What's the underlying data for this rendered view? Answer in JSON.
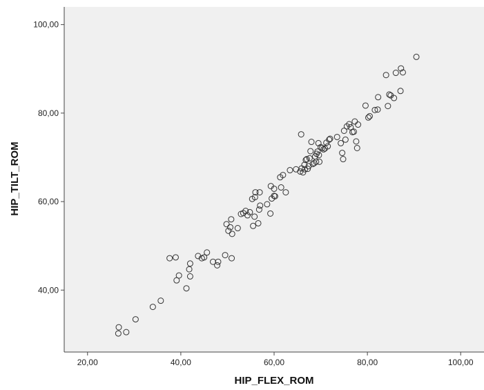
{
  "chart_data": {
    "type": "scatter",
    "title": "",
    "xlabel": "HIP_FLEX_ROM",
    "ylabel": "HIP_TILT_ROM",
    "xlim": [
      15,
      105
    ],
    "ylim": [
      26,
      104
    ],
    "xticks": [
      20,
      40,
      60,
      80,
      100
    ],
    "yticks": [
      40,
      60,
      80,
      100
    ],
    "xtick_labels": [
      "20,00",
      "40,00",
      "60,00",
      "80,00",
      "100,00"
    ],
    "ytick_labels": [
      "40,00",
      "60,00",
      "80,00",
      "100,00"
    ],
    "grid": false,
    "legend": "none",
    "background_color": "#f0f0f0",
    "marker": "open-circle",
    "series": [
      {
        "points": [
          [
            26.7,
            31.6
          ],
          [
            26.6,
            30.2
          ],
          [
            28.3,
            30.5
          ],
          [
            30.3,
            33.4
          ],
          [
            34.0,
            36.2
          ],
          [
            35.7,
            37.6
          ],
          [
            37.6,
            47.2
          ],
          [
            38.9,
            47.4
          ],
          [
            39.1,
            42.2
          ],
          [
            39.6,
            43.3
          ],
          [
            41.2,
            40.4
          ],
          [
            41.8,
            44.7
          ],
          [
            42.0,
            46.0
          ],
          [
            42.0,
            43.1
          ],
          [
            43.7,
            47.7
          ],
          [
            44.5,
            47.2
          ],
          [
            45.0,
            47.4
          ],
          [
            45.6,
            48.5
          ],
          [
            46.9,
            46.4
          ],
          [
            47.8,
            45.6
          ],
          [
            48.0,
            46.4
          ],
          [
            49.5,
            47.9
          ],
          [
            50.9,
            47.2
          ],
          [
            49.8,
            54.9
          ],
          [
            50.2,
            53.4
          ],
          [
            50.6,
            54.2
          ],
          [
            50.8,
            56.0
          ],
          [
            51.0,
            52.7
          ],
          [
            52.2,
            54.0
          ],
          [
            52.9,
            57.2
          ],
          [
            53.4,
            57.4
          ],
          [
            53.9,
            57.9
          ],
          [
            54.3,
            56.9
          ],
          [
            54.8,
            57.6
          ],
          [
            55.3,
            60.6
          ],
          [
            55.5,
            54.5
          ],
          [
            56.0,
            62.1
          ],
          [
            55.9,
            61.0
          ],
          [
            55.8,
            56.6
          ],
          [
            56.6,
            55.1
          ],
          [
            56.8,
            58.2
          ],
          [
            56.9,
            62.1
          ],
          [
            57.0,
            59.1
          ],
          [
            58.5,
            59.4
          ],
          [
            59.3,
            63.5
          ],
          [
            59.2,
            57.3
          ],
          [
            59.5,
            60.7
          ],
          [
            60.0,
            61.3
          ],
          [
            60.0,
            62.9
          ],
          [
            60.2,
            61.2
          ],
          [
            61.3,
            65.5
          ],
          [
            61.5,
            63.2
          ],
          [
            61.9,
            66.0
          ],
          [
            62.5,
            62.1
          ],
          [
            63.4,
            67.1
          ],
          [
            64.7,
            67.3
          ],
          [
            65.6,
            66.8
          ],
          [
            65.8,
            75.2
          ],
          [
            65.9,
            67.5
          ],
          [
            66.2,
            66.6
          ],
          [
            66.5,
            68.3
          ],
          [
            66.6,
            67.3
          ],
          [
            66.8,
            69.4
          ],
          [
            67.0,
            69.6
          ],
          [
            67.2,
            67.4
          ],
          [
            67.4,
            68.0
          ],
          [
            67.6,
            69.8
          ],
          [
            67.8,
            71.4
          ],
          [
            68.0,
            73.5
          ],
          [
            68.3,
            68.5
          ],
          [
            68.6,
            68.7
          ],
          [
            68.8,
            70.2
          ],
          [
            69.0,
            69.0
          ],
          [
            69.1,
            70.8
          ],
          [
            69.3,
            71.3
          ],
          [
            69.5,
            73.2
          ],
          [
            69.6,
            70.5
          ],
          [
            69.7,
            69.0
          ],
          [
            70.0,
            72.3
          ],
          [
            70.3,
            72.1
          ],
          [
            70.6,
            71.8
          ],
          [
            70.9,
            72.0
          ],
          [
            71.2,
            73.3
          ],
          [
            71.5,
            72.5
          ],
          [
            71.8,
            74.0
          ],
          [
            72.0,
            74.2
          ],
          [
            73.5,
            74.6
          ],
          [
            74.3,
            73.2
          ],
          [
            74.6,
            71.0
          ],
          [
            74.8,
            69.6
          ],
          [
            75.0,
            76.0
          ],
          [
            75.3,
            74.0
          ],
          [
            75.6,
            77.0
          ],
          [
            76.1,
            77.5
          ],
          [
            76.4,
            76.8
          ],
          [
            76.8,
            75.7
          ],
          [
            77.1,
            75.8
          ],
          [
            77.3,
            78.1
          ],
          [
            77.6,
            73.6
          ],
          [
            77.8,
            72.1
          ],
          [
            78.0,
            77.4
          ],
          [
            79.6,
            81.7
          ],
          [
            80.2,
            79.0
          ],
          [
            80.5,
            79.3
          ],
          [
            81.6,
            80.7
          ],
          [
            82.2,
            80.8
          ],
          [
            82.3,
            83.6
          ],
          [
            84.0,
            88.6
          ],
          [
            84.4,
            81.6
          ],
          [
            84.7,
            84.2
          ],
          [
            85.0,
            84.0
          ],
          [
            85.7,
            83.4
          ],
          [
            86.1,
            89.1
          ],
          [
            87.1,
            85.0
          ],
          [
            87.2,
            90.1
          ],
          [
            87.6,
            89.2
          ],
          [
            90.5,
            92.7
          ]
        ]
      }
    ]
  }
}
